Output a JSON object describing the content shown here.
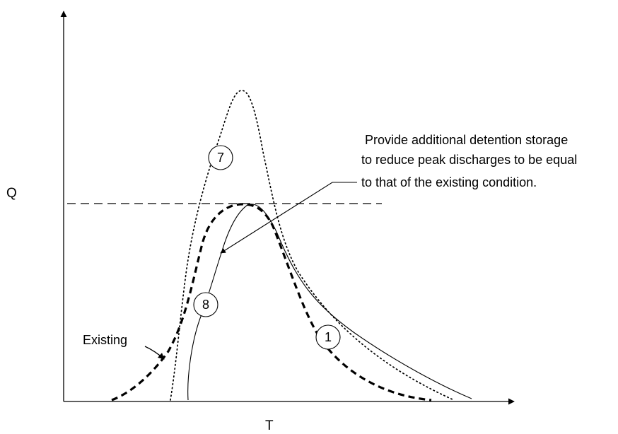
{
  "axes": {
    "y_label": "Q",
    "x_label": "T"
  },
  "curves": {
    "c7": {
      "label": "7",
      "style": "dotted"
    },
    "c8": {
      "label": "8",
      "style": "solid"
    },
    "c1": {
      "label": "1"
    },
    "existing": {
      "label": "Existing",
      "style": "dashed"
    }
  },
  "peak_line": {
    "style": "dashed"
  },
  "note": {
    "lines": [
      "Provide additional detention storage",
      "to reduce peak discharges to be equal",
      "to that of the existing condition."
    ]
  },
  "colors": {
    "ink": "#000000",
    "background": "#ffffff"
  }
}
